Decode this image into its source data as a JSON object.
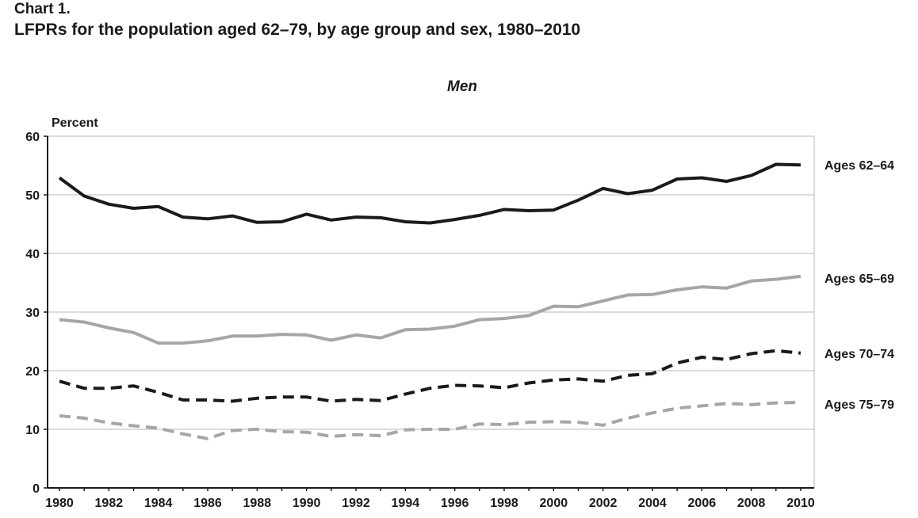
{
  "header": {
    "chart_label": "Chart 1.",
    "title": "LFPRs for the population aged 62–79, by age group and sex, 1980–2010"
  },
  "chart_data": {
    "type": "line",
    "panel_title": "Men",
    "ylabel": "Percent",
    "xlabel": "",
    "ylim": [
      0,
      60
    ],
    "xlim": [
      1980,
      2010
    ],
    "yticks": [
      0,
      10,
      20,
      30,
      40,
      50,
      60
    ],
    "xticks": [
      1980,
      1982,
      1984,
      1986,
      1988,
      1990,
      1992,
      1994,
      1996,
      1998,
      2000,
      2002,
      2004,
      2006,
      2008,
      2010
    ],
    "grid": true,
    "legend": "right",
    "x": [
      1980,
      1981,
      1982,
      1983,
      1984,
      1985,
      1986,
      1987,
      1988,
      1989,
      1990,
      1991,
      1992,
      1993,
      1994,
      1995,
      1996,
      1997,
      1998,
      1999,
      2000,
      2001,
      2002,
      2003,
      2004,
      2005,
      2006,
      2007,
      2008,
      2009,
      2010
    ],
    "series": [
      {
        "name": "Ages 62–64",
        "color": "#1a1a1a",
        "dashed": false,
        "values": [
          52.9,
          49.8,
          48.4,
          47.7,
          48.0,
          46.2,
          45.9,
          46.4,
          45.3,
          45.4,
          46.7,
          45.7,
          46.2,
          46.1,
          45.4,
          45.2,
          45.8,
          46.5,
          47.5,
          47.3,
          47.4,
          49.1,
          51.1,
          50.2,
          50.8,
          52.7,
          52.9,
          52.3,
          53.3,
          55.2,
          55.1
        ]
      },
      {
        "name": "Ages 65–69",
        "color": "#a6a6a6",
        "dashed": false,
        "values": [
          28.7,
          28.3,
          27.3,
          26.5,
          24.7,
          24.7,
          25.1,
          25.9,
          25.9,
          26.2,
          26.1,
          25.2,
          26.1,
          25.6,
          27.0,
          27.1,
          27.6,
          28.7,
          28.9,
          29.4,
          31.0,
          30.9,
          31.9,
          32.9,
          33.0,
          33.8,
          34.3,
          34.1,
          35.3,
          35.6,
          36.1
        ]
      },
      {
        "name": "Ages 70–74",
        "color": "#1a1a1a",
        "dashed": true,
        "values": [
          18.2,
          17.0,
          17.0,
          17.4,
          16.3,
          15.0,
          15.0,
          14.8,
          15.3,
          15.5,
          15.5,
          14.8,
          15.1,
          14.9,
          16.0,
          17.0,
          17.5,
          17.4,
          17.1,
          17.9,
          18.4,
          18.6,
          18.2,
          19.2,
          19.5,
          21.3,
          22.3,
          21.9,
          22.9,
          23.4,
          23.0
        ]
      },
      {
        "name": "Ages 75–79",
        "color": "#a6a6a6",
        "dashed": true,
        "values": [
          12.3,
          11.9,
          11.1,
          10.6,
          10.2,
          9.2,
          8.4,
          9.8,
          10.0,
          9.6,
          9.5,
          8.8,
          9.1,
          8.9,
          9.9,
          10.0,
          10.0,
          10.9,
          10.8,
          11.2,
          11.3,
          11.2,
          10.7,
          11.9,
          12.8,
          13.6,
          14.0,
          14.4,
          14.2,
          14.5,
          14.6
        ]
      }
    ]
  }
}
